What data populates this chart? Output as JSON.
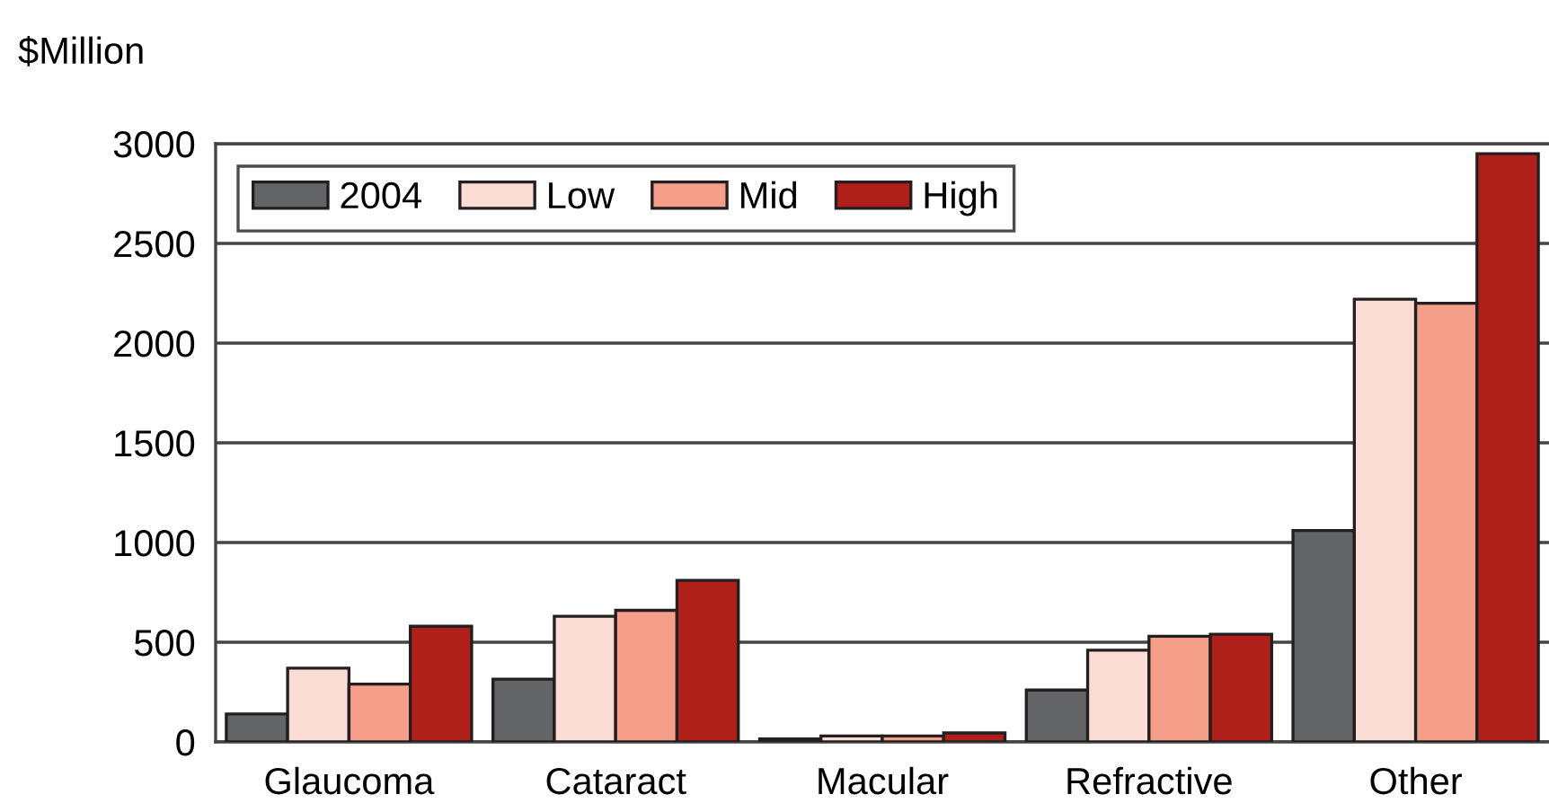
{
  "chart_data": {
    "type": "bar",
    "ylabel": "$Million",
    "categories": [
      "Glaucoma",
      "Cataract",
      "Macular",
      "Refractive",
      "Other"
    ],
    "series": [
      {
        "name": "2004",
        "color": "#636466",
        "values": [
          140,
          315,
          15,
          260,
          1060
        ]
      },
      {
        "name": "Low",
        "color": "#fcddd6",
        "values": [
          370,
          630,
          30,
          460,
          2220
        ]
      },
      {
        "name": "Mid",
        "color": "#f59e8a",
        "values": [
          290,
          660,
          30,
          530,
          2200
        ]
      },
      {
        "name": "High",
        "color": "#b0201a",
        "values": [
          580,
          810,
          45,
          540,
          2950
        ]
      }
    ],
    "ylim": [
      0,
      3000
    ],
    "yticks": [
      0,
      500,
      1000,
      1500,
      2000,
      2500,
      3000
    ],
    "grid": "y",
    "legend": "top left"
  }
}
